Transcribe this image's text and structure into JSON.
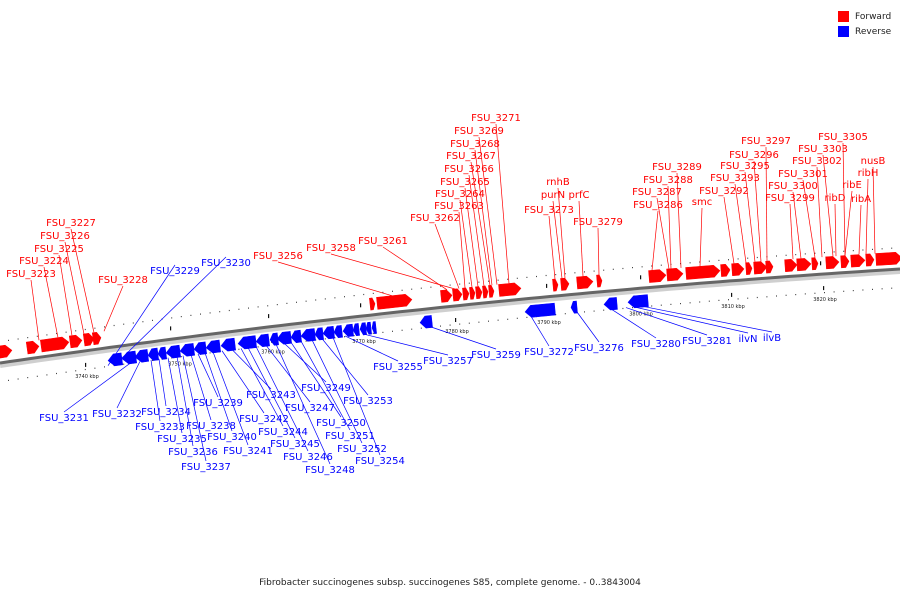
{
  "legend": {
    "forward_label": "Forward",
    "reverse_label": "Reverse",
    "forward_color": "#ff0000",
    "reverse_color": "#0000ff"
  },
  "caption": "Fibrobacter succinogenes subsp. succinogenes S85, complete genome. - 0..3843004",
  "scale_labels": [
    "3740 kbp",
    "3750 kbp",
    "3760 kbp",
    "3770 kbp",
    "3780 kbp",
    "3790 kbp",
    "3800 kbp",
    "3810 kbp",
    "3820 kbp"
  ],
  "forward_genes": [
    "FSU_3223",
    "FSU_3224",
    "FSU_3225",
    "FSU_3226",
    "FSU_3227",
    "FSU_3228",
    "FSU_3256",
    "FSU_3258",
    "FSU_3261",
    "FSU_3262",
    "FSU_3263",
    "FSU_3264",
    "FSU_3265",
    "FSU_3266",
    "FSU_3267",
    "FSU_3268",
    "FSU_3269",
    "FSU_3271",
    "FSU_3273",
    "purN",
    "rnhB",
    "prfC",
    "FSU_3279",
    "FSU_3286",
    "FSU_3287",
    "FSU_3288",
    "FSU_3289",
    "smc",
    "FSU_3292",
    "FSU_3293",
    "FSU_3295",
    "FSU_3296",
    "FSU_3297",
    "FSU_3299",
    "FSU_3300",
    "FSU_3301",
    "FSU_3302",
    "FSU_3303",
    "FSU_3305",
    "ribD",
    "ribE",
    "ribA",
    "ribH",
    "nusB"
  ],
  "reverse_genes": [
    "FSU_3229",
    "FSU_3230",
    "FSU_3231",
    "FSU_3232",
    "FSU_3233",
    "FSU_3234",
    "FSU_3235",
    "FSU_3236",
    "FSU_3237",
    "FSU_3238",
    "FSU_3239",
    "FSU_3240",
    "FSU_3241",
    "FSU_3242",
    "FSU_3243",
    "FSU_3244",
    "FSU_3245",
    "FSU_3246",
    "FSU_3247",
    "FSU_3248",
    "FSU_3249",
    "FSU_3250",
    "FSU_3251",
    "FSU_3252",
    "FSU_3253",
    "FSU_3254",
    "FSU_3255",
    "FSU_3257",
    "FSU_3259",
    "FSU_3272",
    "FSU_3276",
    "FSU_3280",
    "FSU_3281",
    "ilvN",
    "ilvB"
  ]
}
